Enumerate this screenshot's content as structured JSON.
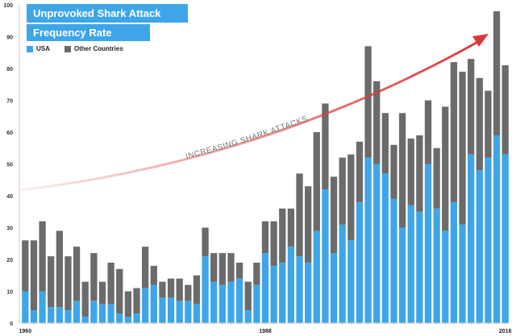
{
  "chart_data": {
    "type": "bar",
    "stacked": true,
    "title": "Unprovoked Shark Attack",
    "subtitle": "Frequency Rate",
    "annotation": "INCREASING SHARK ATTACKS",
    "x": [
      1960,
      1961,
      1962,
      1963,
      1964,
      1965,
      1966,
      1967,
      1968,
      1969,
      1970,
      1971,
      1972,
      1973,
      1974,
      1975,
      1976,
      1977,
      1978,
      1979,
      1980,
      1981,
      1982,
      1983,
      1984,
      1985,
      1986,
      1987,
      1988,
      1989,
      1990,
      1991,
      1992,
      1993,
      1994,
      1995,
      1996,
      1997,
      1998,
      1999,
      2000,
      2001,
      2002,
      2003,
      2004,
      2005,
      2006,
      2007,
      2008,
      2009,
      2010,
      2011,
      2012,
      2013,
      2014,
      2015,
      2016
    ],
    "x_tick_labels": [
      "1960",
      "1988",
      "2016"
    ],
    "y_ticks": [
      0,
      10,
      20,
      30,
      40,
      50,
      60,
      70,
      80,
      90,
      100
    ],
    "ylim": [
      0,
      100
    ],
    "grid": false,
    "legend_placement": "top-left",
    "series": [
      {
        "name": "USA",
        "color": "#3ea6e8",
        "values": [
          10,
          4,
          10,
          5,
          5,
          4,
          7,
          2,
          7,
          6,
          6,
          3,
          2,
          3,
          11,
          12,
          8,
          8,
          7,
          7,
          6,
          21,
          13,
          12,
          13,
          14,
          4,
          12,
          22,
          18,
          19,
          24,
          21,
          19,
          29,
          42,
          22,
          31,
          26,
          38,
          52,
          50,
          47,
          39,
          30,
          37,
          35,
          50,
          36,
          29,
          38,
          31,
          53,
          48,
          52,
          59,
          53
        ]
      },
      {
        "name": "Other Countries",
        "color": "#6b6b6b",
        "values": [
          16,
          22,
          22,
          16,
          24,
          17,
          17,
          11,
          15,
          7,
          13,
          14,
          8,
          8,
          13,
          6,
          5,
          6,
          7,
          5,
          9,
          9,
          9,
          10,
          9,
          5,
          9,
          7,
          10,
          14,
          17,
          12,
          26,
          24,
          31,
          27,
          24,
          21,
          27,
          19,
          35,
          26,
          19,
          17,
          36,
          21,
          24,
          20,
          19,
          39,
          44,
          48,
          30,
          29,
          21,
          39,
          28
        ]
      }
    ],
    "arrow_color": "#d93a3a"
  }
}
